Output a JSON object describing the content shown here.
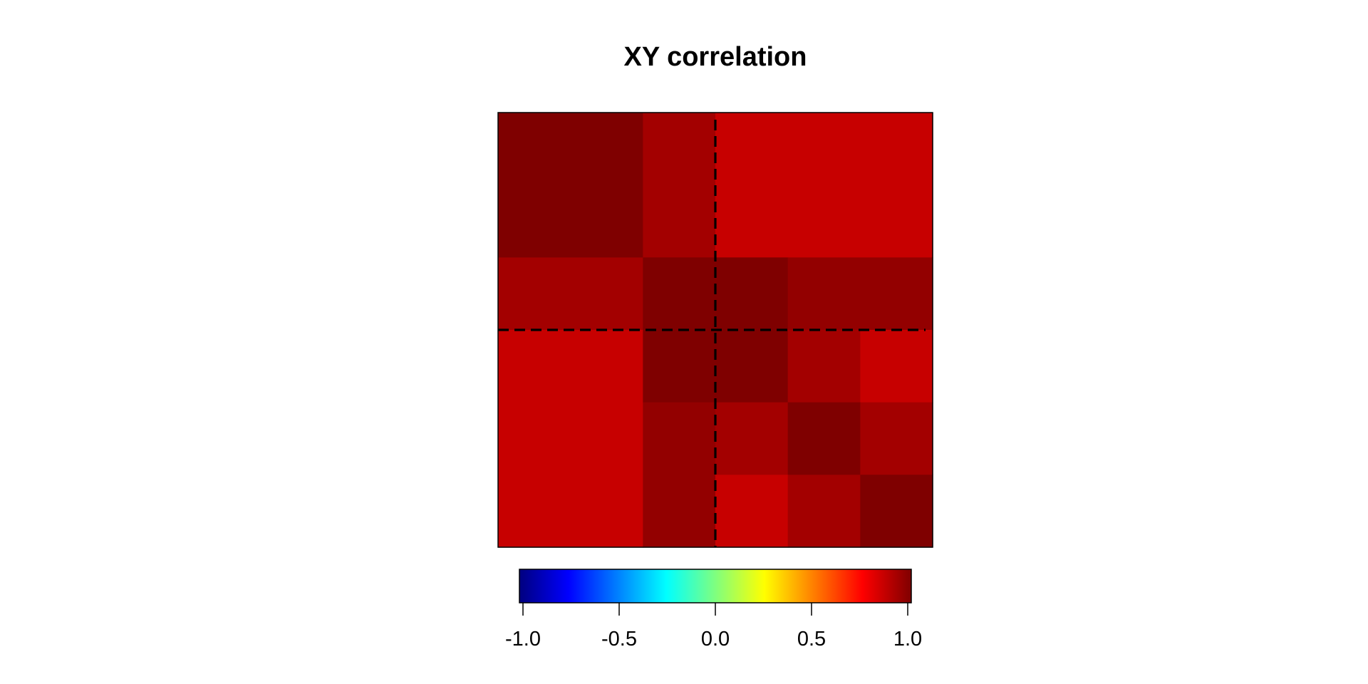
{
  "chart_data": {
    "type": "heatmap",
    "title": "XY correlation",
    "grid_columns": 6,
    "grid_rows": 6,
    "cells": [
      {
        "col": 0,
        "row": 0,
        "w": 2,
        "h": 2,
        "value": 1.0
      },
      {
        "col": 2,
        "row": 0,
        "w": 1,
        "h": 2,
        "value": 0.93
      },
      {
        "col": 3,
        "row": 0,
        "w": 3,
        "h": 2,
        "value": 0.86
      },
      {
        "col": 0,
        "row": 2,
        "w": 2,
        "h": 1,
        "value": 0.93
      },
      {
        "col": 2,
        "row": 2,
        "w": 1,
        "h": 1,
        "value": 1.0
      },
      {
        "col": 3,
        "row": 2,
        "w": 1,
        "h": 1,
        "value": 1.0
      },
      {
        "col": 4,
        "row": 2,
        "w": 2,
        "h": 1,
        "value": 0.96
      },
      {
        "col": 0,
        "row": 3,
        "w": 2,
        "h": 3,
        "value": 0.86
      },
      {
        "col": 2,
        "row": 3,
        "w": 1,
        "h": 1,
        "value": 1.0
      },
      {
        "col": 3,
        "row": 3,
        "w": 1,
        "h": 1,
        "value": 1.0
      },
      {
        "col": 4,
        "row": 3,
        "w": 1,
        "h": 1,
        "value": 0.93
      },
      {
        "col": 5,
        "row": 3,
        "w": 1,
        "h": 1,
        "value": 0.86
      },
      {
        "col": 2,
        "row": 4,
        "w": 1,
        "h": 2,
        "value": 0.96
      },
      {
        "col": 3,
        "row": 4,
        "w": 1,
        "h": 1,
        "value": 0.93
      },
      {
        "col": 4,
        "row": 4,
        "w": 1,
        "h": 1,
        "value": 1.0
      },
      {
        "col": 5,
        "row": 4,
        "w": 1,
        "h": 1,
        "value": 0.93
      },
      {
        "col": 3,
        "row": 5,
        "w": 1,
        "h": 1,
        "value": 0.86
      },
      {
        "col": 4,
        "row": 5,
        "w": 1,
        "h": 1,
        "value": 0.93
      },
      {
        "col": 5,
        "row": 5,
        "w": 1,
        "h": 1,
        "value": 1.0
      }
    ],
    "divider_vertical_after_col": 3,
    "divider_horizontal_after_row": 3,
    "colorbar": {
      "range": [
        -1.0,
        1.0
      ],
      "ticks": [
        -1.0,
        -0.5,
        0.0,
        0.5,
        1.0
      ],
      "tick_labels": [
        "-1.0",
        "-0.5",
        "0.0",
        "0.5",
        "1.0"
      ],
      "palette": "jet",
      "colors": [
        "#00007F",
        "#0000FF",
        "#007FFF",
        "#00FFFF",
        "#7FFF7F",
        "#FFFF00",
        "#FF7F00",
        "#FF0000",
        "#7F0000"
      ]
    },
    "grid": false,
    "legend": "bottom"
  }
}
